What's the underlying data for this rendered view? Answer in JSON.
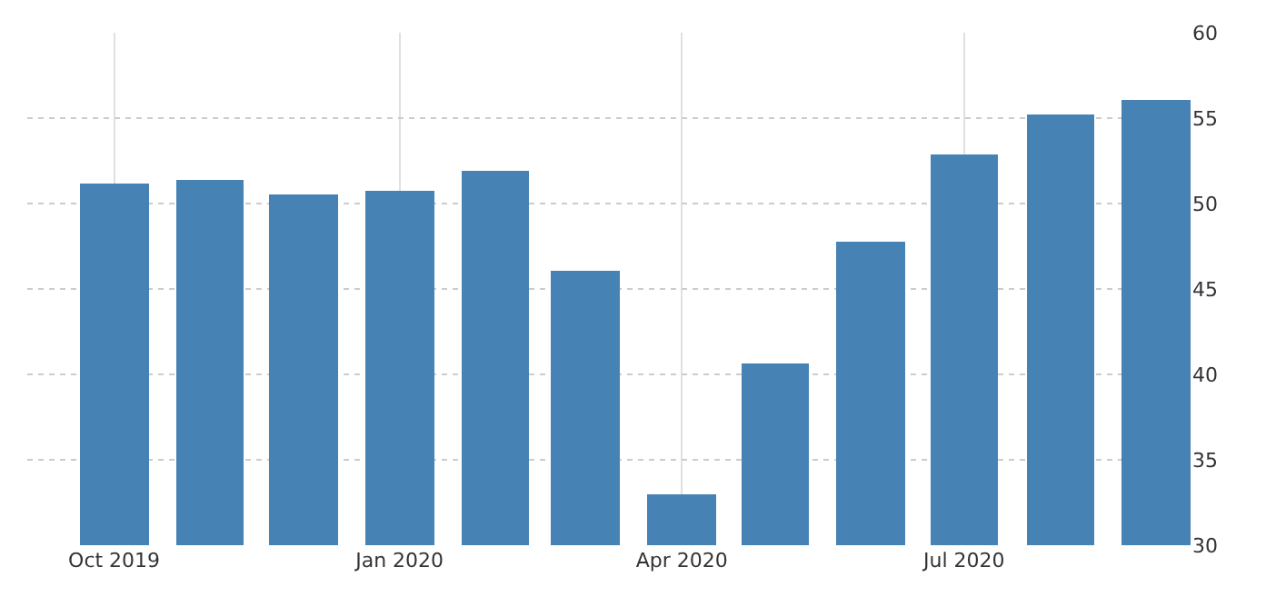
{
  "chart_data": {
    "type": "bar",
    "x": [
      "2019-10",
      "2019-11",
      "2019-12",
      "2020-01",
      "2020-02",
      "2020-03",
      "2020-04",
      "2020-05",
      "2020-06",
      "2020-07",
      "2020-08",
      "2020-09"
    ],
    "values": [
      51.2,
      51.4,
      50.5,
      50.7,
      51.9,
      46.1,
      33.0,
      40.6,
      47.8,
      52.9,
      55.2,
      56.1
    ],
    "color": "#4682b4",
    "xlim": [
      "2019-09-03",
      "2020-09-12"
    ],
    "xticks": [
      {
        "value": "2019-10",
        "label": "Oct 2019"
      },
      {
        "value": "2020-01",
        "label": "Jan 2020"
      },
      {
        "value": "2020-04",
        "label": "Apr 2020"
      },
      {
        "value": "2020-07",
        "label": "Jul 2020"
      }
    ],
    "ylim": [
      30,
      60
    ],
    "yticks": [
      30,
      35,
      40,
      45,
      50,
      55,
      60
    ],
    "grid": true
  }
}
